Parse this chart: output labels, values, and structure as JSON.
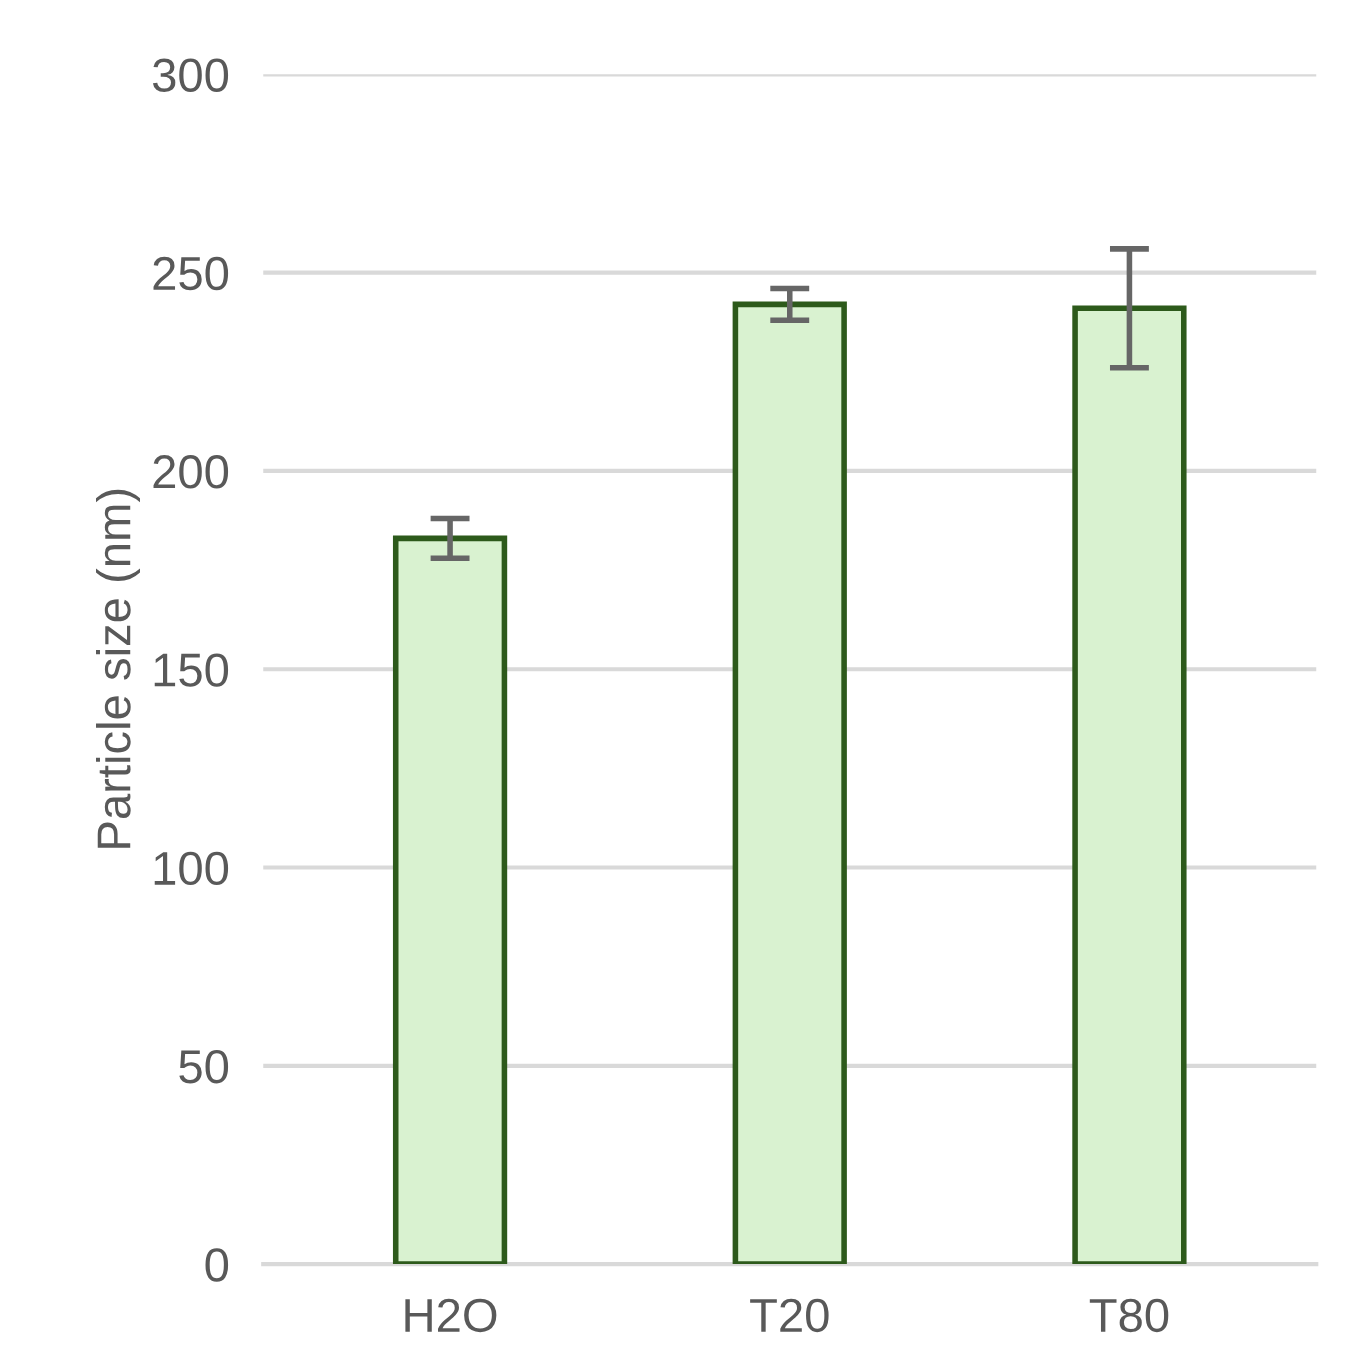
{
  "chart_data": {
    "type": "bar",
    "ylabel": "Particle size (nm)",
    "categories": [
      "H2O",
      "T20",
      "T80"
    ],
    "values": [
      183,
      242,
      241
    ],
    "errors": [
      5,
      4,
      15
    ],
    "color": "#d9f2d0",
    "ylim": [
      0,
      300
    ],
    "yticks": [
      0,
      50,
      100,
      150,
      200,
      250,
      300
    ],
    "grid": "y"
  }
}
